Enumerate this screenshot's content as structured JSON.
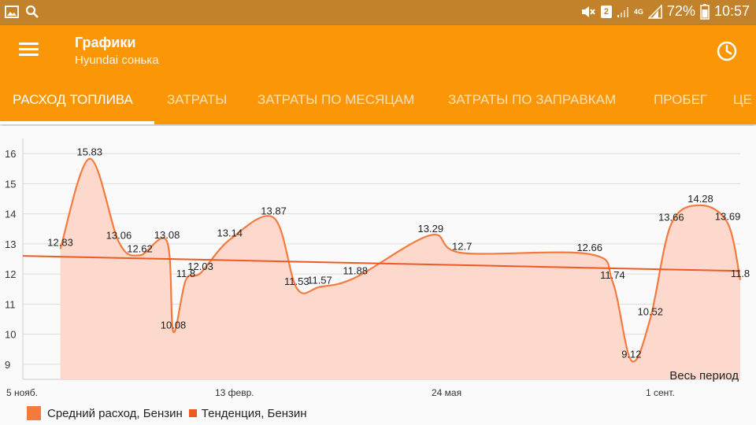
{
  "status_bar": {
    "battery_percent": "72%",
    "time": "10:57",
    "sim_badge": "2",
    "network_label": "4G",
    "icons": [
      "gallery-icon",
      "search-icon",
      "mute-icon",
      "sim-icon",
      "signal-icon",
      "battery-icon"
    ]
  },
  "app_bar": {
    "title": "Графики",
    "subtitle": "Hyundai сонька",
    "background_color": "#fb9707",
    "icons": [
      "menu-icon",
      "history-clock-icon"
    ]
  },
  "tabs": [
    {
      "label": "РАСХОД ТОПЛИВА",
      "active": true
    },
    {
      "label": "ЗАТРАТЫ",
      "active": false
    },
    {
      "label": "ЗАТРАТЫ ПО МЕСЯЦАМ",
      "active": false
    },
    {
      "label": "ЗАТРАТЫ ПО ЗАПРАВКАМ",
      "active": false
    },
    {
      "label": "ПРОБЕГ",
      "active": false
    },
    {
      "label": "ЦЕ",
      "active": false
    }
  ],
  "chart_data": {
    "type": "area",
    "title": "",
    "period_label": "Весь период",
    "xlabel": "",
    "ylabel": "",
    "ylim": [
      8.5,
      16.5
    ],
    "y_ticks": [
      9,
      10,
      11,
      12,
      13,
      14,
      15,
      16
    ],
    "x_ticks": [
      "5 нояб.",
      "13 февр.",
      "24 мая",
      "1 сент."
    ],
    "grid": true,
    "legend_position": "bottom-left",
    "series": [
      {
        "name": "Средний расход, Бензин",
        "color": "#f47a3e",
        "fill": "#fcd9cc",
        "points": [
          {
            "x": "2016-11-15",
            "y": 12.83
          },
          {
            "x": "2016-11-29",
            "y": 15.83
          },
          {
            "x": "2016-12-13",
            "y": 13.06
          },
          {
            "x": "2016-12-23",
            "y": 12.62
          },
          {
            "x": "2017-01-05",
            "y": 13.08
          },
          {
            "x": "2017-01-08",
            "y": 10.08
          },
          {
            "x": "2017-01-14",
            "y": 11.8
          },
          {
            "x": "2017-01-21",
            "y": 12.03
          },
          {
            "x": "2017-02-04",
            "y": 13.14
          },
          {
            "x": "2017-02-25",
            "y": 13.87
          },
          {
            "x": "2017-03-08",
            "y": 11.53
          },
          {
            "x": "2017-03-19",
            "y": 11.57
          },
          {
            "x": "2017-04-05",
            "y": 11.88
          },
          {
            "x": "2017-05-11",
            "y": 13.29
          },
          {
            "x": "2017-05-26",
            "y": 12.7
          },
          {
            "x": "2017-07-26",
            "y": 12.66
          },
          {
            "x": "2017-08-06",
            "y": 11.74
          },
          {
            "x": "2017-08-15",
            "y": 9.12
          },
          {
            "x": "2017-08-24",
            "y": 10.52
          },
          {
            "x": "2017-09-03",
            "y": 13.66
          },
          {
            "x": "2017-09-17",
            "y": 14.28
          },
          {
            "x": "2017-09-30",
            "y": 13.69
          },
          {
            "x": "2017-10-06",
            "y": 11.8
          }
        ]
      },
      {
        "name": "Тенденция, Бензин",
        "color": "#ee5a24",
        "points": [
          {
            "x": "2016-11-05",
            "y": 12.6
          },
          {
            "x": "2017-10-06",
            "y": 12.1
          }
        ]
      }
    ]
  }
}
